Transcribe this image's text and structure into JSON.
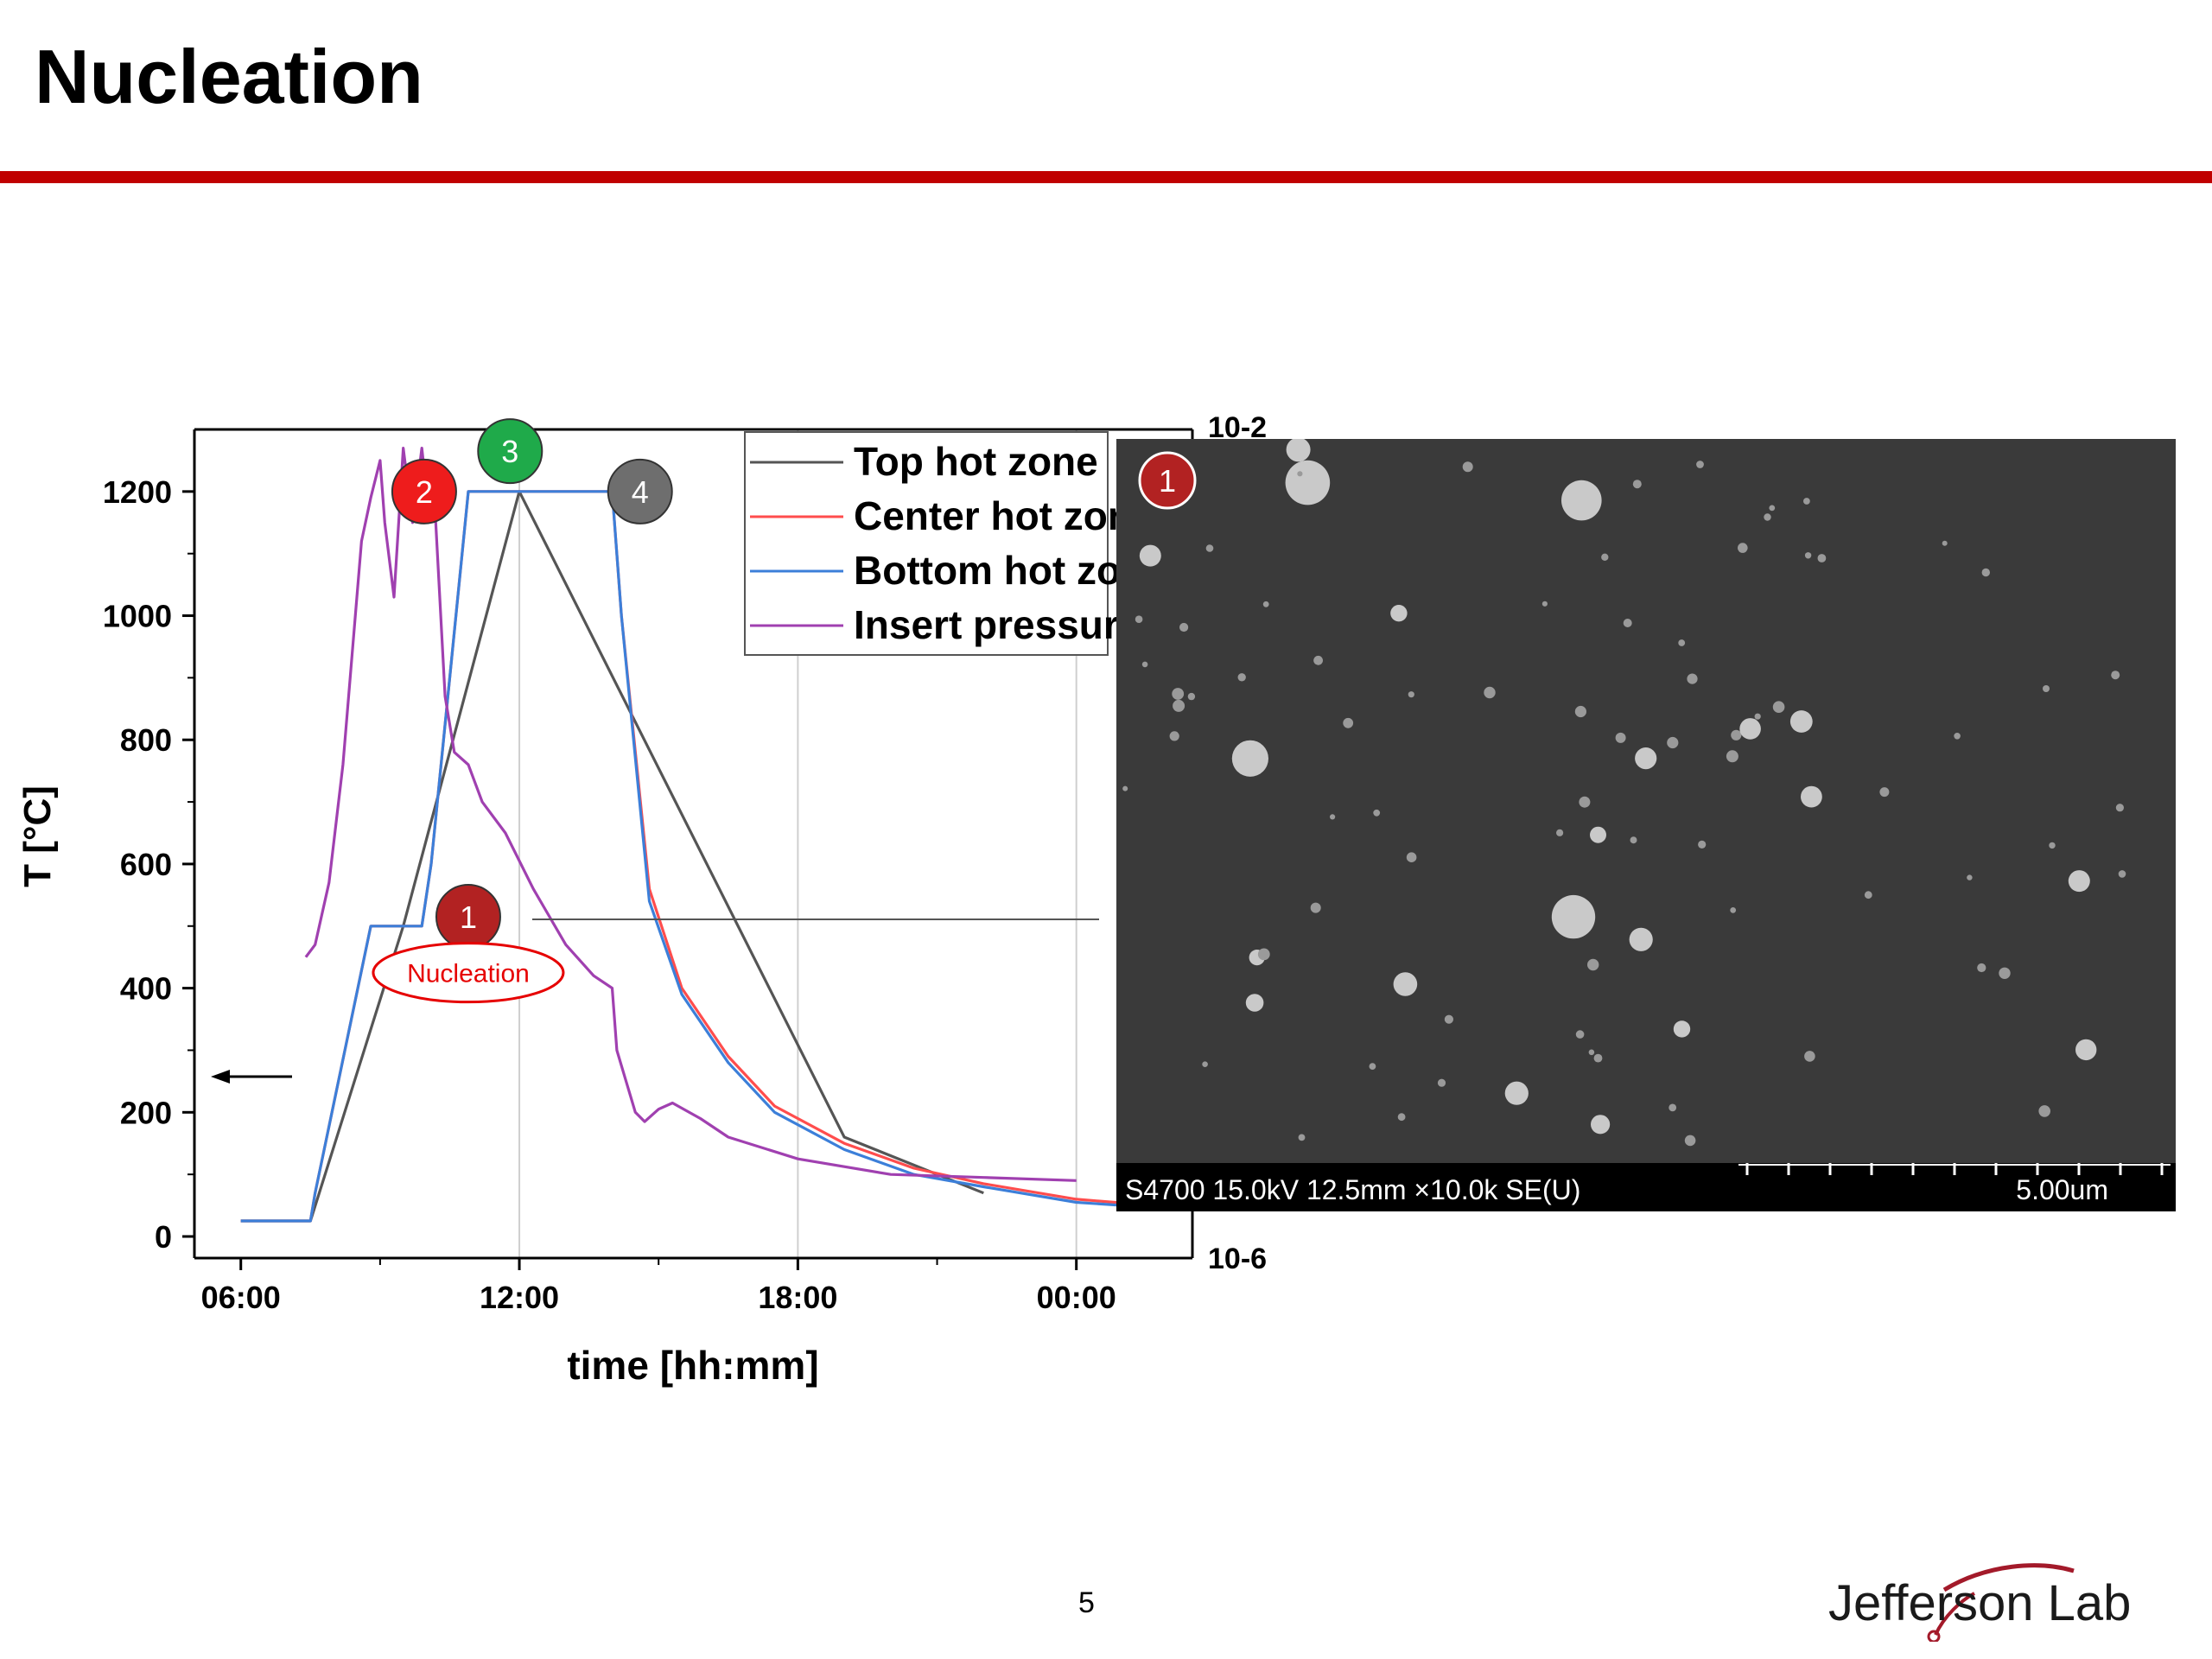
{
  "slide": {
    "title": "Nucleation",
    "page_number": "5",
    "accent_color": "#c00000",
    "logo_text": "Jefferson Lab"
  },
  "chart_data": {
    "type": "line",
    "xlabel": "time [hh:mm]",
    "ylabel": "T [°C]",
    "xlim": [
      5,
      26.5
    ],
    "ylim": [
      0,
      1300
    ],
    "x_ticks": [
      6,
      12,
      18,
      24
    ],
    "x_tick_labels": [
      "06:00",
      "12:00",
      "18:00",
      "00:00"
    ],
    "y_ticks": [
      0,
      200,
      400,
      600,
      800,
      1000,
      1200
    ],
    "y_tick_labels": [
      "0",
      "200",
      "400",
      "600",
      "800",
      "1000",
      "1200"
    ],
    "right_axis_labels": [
      "10-2",
      "10-6"
    ],
    "grid": "vertical",
    "legend_position": "top-right",
    "series": [
      {
        "name": "Top hot zone",
        "color": "#555555",
        "x": [
          6,
          7.5,
          9.5,
          12,
          19,
          22
        ],
        "y": [
          25,
          25,
          500,
          1200,
          160,
          70
        ]
      },
      {
        "name": "Center hot zone",
        "color": "#ff4d4d",
        "x": [
          6,
          7.5,
          7.6,
          8.8,
          9.9,
          10.1,
          10.9,
          14.0,
          14.2,
          14.8,
          15.5,
          16.5,
          17.5,
          19,
          20.5,
          22,
          24,
          26
        ],
        "y": [
          25,
          25,
          70,
          500,
          500,
          600,
          1200,
          1200,
          1000,
          560,
          400,
          290,
          210,
          150,
          110,
          85,
          60,
          48
        ]
      },
      {
        "name": "Bottom hot zone",
        "color": "#3c7fd9",
        "x": [
          6,
          7.5,
          7.6,
          8.8,
          9.9,
          10.1,
          10.9,
          14.0,
          14.2,
          14.8,
          15.5,
          16.5,
          17.5,
          19,
          20.5,
          22,
          24,
          26
        ],
        "y": [
          25,
          25,
          70,
          500,
          500,
          600,
          1200,
          1200,
          1000,
          540,
          390,
          280,
          200,
          140,
          100,
          80,
          55,
          45
        ]
      },
      {
        "name": "Insert pressure",
        "color": "#a040b0",
        "x": [
          7.4,
          7.6,
          7.9,
          8.2,
          8.6,
          8.8,
          9.0,
          9.1,
          9.3,
          9.4,
          9.5,
          9.7,
          9.9,
          10.0,
          10.2,
          10.4,
          10.6,
          10.9,
          11.2,
          11.7,
          12.3,
          13.0,
          13.6,
          14.0,
          14.1,
          14.3,
          14.5,
          14.7,
          15.0,
          15.3,
          15.9,
          16.5,
          18,
          20,
          22,
          24
        ],
        "y": [
          450,
          470,
          570,
          760,
          1120,
          1190,
          1250,
          1150,
          1030,
          1150,
          1270,
          1150,
          1270,
          1200,
          1150,
          870,
          780,
          760,
          700,
          650,
          560,
          470,
          420,
          400,
          300,
          250,
          200,
          185,
          205,
          215,
          190,
          160,
          125,
          100,
          95,
          90
        ]
      }
    ],
    "annotations": [
      {
        "label": "1",
        "color": "#b22222",
        "x": 10.9,
        "y": 515
      },
      {
        "label": "Nucleation",
        "color": "#e60000",
        "x": 10.9,
        "y": 425
      },
      {
        "label": "2",
        "color": "#ee1c1c",
        "x": 9.95,
        "y": 1200
      },
      {
        "label": "3",
        "color": "#1faa4a",
        "x": 11.8,
        "y": 1265
      },
      {
        "label": "4",
        "color": "#6e6e6e",
        "x": 14.6,
        "y": 1200
      }
    ]
  },
  "sem_image": {
    "marker": "1",
    "marker_color": "#b22222",
    "info": "S4700 15.0kV 12.5mm ×10.0k SE(U)",
    "scale": "5.00um"
  }
}
